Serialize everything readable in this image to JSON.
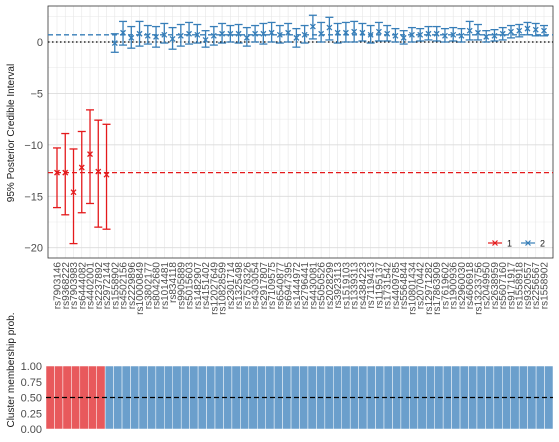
{
  "chart_data": [
    {
      "type": "scatter",
      "ylabel": "95% Posterior Credible Interval",
      "xlabel": "",
      "ylim": [
        -21,
        3.5
      ],
      "yticks": [
        0,
        -5,
        -10,
        -15,
        -20
      ],
      "grid": true,
      "legend_position": "bottom-right",
      "categories": [
        "rs7903146",
        "rs9368222",
        "rs7903983",
        "rs6444082",
        "rs4402001",
        "rs2237892",
        "rs2972144",
        "rs1558902",
        "rs4502156",
        "rs2229896",
        "rs10000849",
        "rs3802177",
        "rs8042680",
        "rs1014481",
        "rs834118",
        "rs9905889",
        "rs5015603",
        "rs1482907",
        "rs4151402",
        "rs12027649",
        "rs10828599",
        "rs2301714",
        "rs1325498",
        "rs7578326",
        "rs4303054",
        "rs2917807",
        "rs7109575",
        "rs6540877",
        "rs6947395",
        "rs1444972",
        "rs2796441",
        "rs4430081",
        "rs5050526",
        "rs2028299",
        "rs3923113",
        "rs1519103",
        "rs1339313",
        "rs4384223",
        "rs7119413",
        "rs1195137",
        "rs1731542",
        "rs4409785",
        "rs5564844",
        "rs10801434",
        "rs2070442",
        "rs12971282",
        "rs17863909",
        "rs7619602",
        "rs1900936",
        "rs2960030",
        "rs4606918",
        "rs13233756",
        "rs2049950",
        "rs2638959",
        "rs5607160",
        "rs9171917",
        "rs1558918",
        "rs9320557",
        "rs2256567",
        "rs1558902"
      ],
      "series": [
        {
          "name": "1",
          "color": "#e41a1c",
          "points": [
            {
              "x": "rs7903146",
              "y": -12.7,
              "lo": -16.1,
              "hi": -10.3
            },
            {
              "x": "rs9368222",
              "y": -12.7,
              "lo": -16.8,
              "hi": -8.9
            },
            {
              "x": "rs7903983",
              "y": -14.6,
              "lo": -19.6,
              "hi": -10.4
            },
            {
              "x": "rs6444082",
              "y": -12.2,
              "lo": -16.6,
              "hi": -8.7
            },
            {
              "x": "rs4402001",
              "y": -10.9,
              "lo": -15.7,
              "hi": -6.6
            },
            {
              "x": "rs2237892",
              "y": -12.6,
              "lo": -18.0,
              "hi": -7.6
            },
            {
              "x": "rs2972144",
              "y": -12.9,
              "lo": -18.2,
              "hi": -8.0
            }
          ],
          "reference_line": -12.7
        },
        {
          "name": "2",
          "color": "#377eb8",
          "points": [
            {
              "x": "rs1558902",
              "y": -0.1,
              "lo": -1.0,
              "hi": 0.8
            },
            {
              "x": "rs4502156",
              "y": 0.9,
              "lo": -0.3,
              "hi": 2.0
            },
            {
              "x": "rs2229896",
              "y": 0.4,
              "lo": -0.6,
              "hi": 1.5
            },
            {
              "x": "rs10000849",
              "y": 0.8,
              "lo": -0.4,
              "hi": 2.0
            },
            {
              "x": "rs3802177",
              "y": 0.6,
              "lo": -0.2,
              "hi": 1.6
            },
            {
              "x": "rs8042680",
              "y": 0.5,
              "lo": -0.5,
              "hi": 1.5
            },
            {
              "x": "rs1014481",
              "y": 0.7,
              "lo": -0.1,
              "hi": 1.8
            },
            {
              "x": "rs834118",
              "y": 0.3,
              "lo": -0.7,
              "hi": 1.4
            },
            {
              "x": "rs9905889",
              "y": 0.6,
              "lo": -0.4,
              "hi": 1.7
            },
            {
              "x": "rs5015603",
              "y": 0.8,
              "lo": -0.2,
              "hi": 1.9
            },
            {
              "x": "rs1482907",
              "y": 0.7,
              "lo": -0.1,
              "hi": 1.7
            },
            {
              "x": "rs4151402",
              "y": 0.2,
              "lo": -0.5,
              "hi": 1.1
            },
            {
              "x": "rs12027649",
              "y": 0.6,
              "lo": -0.3,
              "hi": 1.5
            },
            {
              "x": "rs10828599",
              "y": 0.8,
              "lo": -0.1,
              "hi": 1.8
            },
            {
              "x": "rs2301714",
              "y": 0.8,
              "lo": 0.0,
              "hi": 1.6
            },
            {
              "x": "rs1325498",
              "y": 0.8,
              "lo": -0.1,
              "hi": 1.7
            },
            {
              "x": "rs7578326",
              "y": 0.4,
              "lo": -0.4,
              "hi": 1.4
            },
            {
              "x": "rs4303054",
              "y": 0.8,
              "lo": 0.0,
              "hi": 1.6
            },
            {
              "x": "rs2917807",
              "y": 0.8,
              "lo": -0.2,
              "hi": 1.8
            },
            {
              "x": "rs7109575",
              "y": 0.9,
              "lo": 0.0,
              "hi": 1.9
            },
            {
              "x": "rs6540877",
              "y": 0.7,
              "lo": -0.1,
              "hi": 1.6
            },
            {
              "x": "rs6947395",
              "y": 0.9,
              "lo": 0.0,
              "hi": 1.8
            },
            {
              "x": "rs1444972",
              "y": 0.4,
              "lo": -0.5,
              "hi": 1.3
            },
            {
              "x": "rs2796441",
              "y": 0.7,
              "lo": -0.1,
              "hi": 1.6
            },
            {
              "x": "rs4430081",
              "y": 1.5,
              "lo": 0.3,
              "hi": 2.6
            },
            {
              "x": "rs5050526",
              "y": 0.8,
              "lo": 0.0,
              "hi": 1.9
            },
            {
              "x": "rs2028299",
              "y": 1.4,
              "lo": 0.2,
              "hi": 2.4
            },
            {
              "x": "rs3923113",
              "y": 0.9,
              "lo": -0.1,
              "hi": 1.8
            },
            {
              "x": "rs1519103",
              "y": 0.9,
              "lo": 0.0,
              "hi": 1.9
            },
            {
              "x": "rs1339313",
              "y": 1.0,
              "lo": 0.0,
              "hi": 2.0
            },
            {
              "x": "rs4384223",
              "y": 0.9,
              "lo": 0.1,
              "hi": 1.8
            },
            {
              "x": "rs7119413",
              "y": 0.7,
              "lo": -0.1,
              "hi": 1.6
            },
            {
              "x": "rs1195137",
              "y": 1.0,
              "lo": 0.1,
              "hi": 1.9
            },
            {
              "x": "rs1731542",
              "y": 0.8,
              "lo": 0.1,
              "hi": 1.6
            },
            {
              "x": "rs4409785",
              "y": 0.6,
              "lo": 0.0,
              "hi": 1.3
            },
            {
              "x": "rs5564844",
              "y": 0.4,
              "lo": -0.2,
              "hi": 1.1
            },
            {
              "x": "rs10801434",
              "y": 0.7,
              "lo": 0.0,
              "hi": 1.4
            },
            {
              "x": "rs2070442",
              "y": 0.7,
              "lo": 0.1,
              "hi": 1.3
            },
            {
              "x": "rs12971282",
              "y": 0.8,
              "lo": 0.2,
              "hi": 1.5
            },
            {
              "x": "rs17863909",
              "y": 0.8,
              "lo": 0.1,
              "hi": 1.5
            },
            {
              "x": "rs7619602",
              "y": 0.6,
              "lo": 0.0,
              "hi": 1.3
            },
            {
              "x": "rs1900936",
              "y": 0.7,
              "lo": 0.1,
              "hi": 1.4
            },
            {
              "x": "rs2960030",
              "y": 0.6,
              "lo": 0.0,
              "hi": 1.3
            },
            {
              "x": "rs4606918",
              "y": 1.1,
              "lo": 0.2,
              "hi": 2.0
            },
            {
              "x": "rs13233756",
              "y": 0.9,
              "lo": 0.2,
              "hi": 1.7
            },
            {
              "x": "rs2049950",
              "y": 0.5,
              "lo": 0.0,
              "hi": 1.1
            },
            {
              "x": "rs2638959",
              "y": 0.6,
              "lo": 0.1,
              "hi": 1.2
            },
            {
              "x": "rs5607160",
              "y": 0.8,
              "lo": 0.2,
              "hi": 1.4
            },
            {
              "x": "rs9171917",
              "y": 1.0,
              "lo": 0.4,
              "hi": 1.6
            },
            {
              "x": "rs1558918",
              "y": 1.1,
              "lo": 0.5,
              "hi": 1.7
            },
            {
              "x": "rs9320557",
              "y": 1.3,
              "lo": 0.7,
              "hi": 1.9
            },
            {
              "x": "rs2256567",
              "y": 1.2,
              "lo": 0.6,
              "hi": 1.8
            },
            {
              "x": "rs1558902",
              "y": 1.1,
              "lo": 0.6,
              "hi": 1.6
            }
          ],
          "reference_line": 0.7
        }
      ]
    },
    {
      "type": "bar",
      "ylabel": "Cluster membership prob.",
      "ylim": [
        0,
        1
      ],
      "yticks": [
        "0.00",
        "0.25",
        "0.50",
        "0.75",
        "1.00"
      ],
      "reference_line": 0.5,
      "stacked": true,
      "series": [
        {
          "name": "1",
          "color": "#e8595c",
          "values_by_index": [
            1,
            1,
            1,
            1,
            1,
            1,
            1,
            0,
            0,
            0,
            0,
            0,
            0,
            0,
            0,
            0,
            0,
            0,
            0,
            0,
            0,
            0,
            0,
            0,
            0,
            0,
            0,
            0,
            0,
            0,
            0,
            0,
            0,
            0,
            0,
            0,
            0,
            0,
            0,
            0,
            0,
            0,
            0,
            0,
            0,
            0,
            0,
            0,
            0,
            0,
            0,
            0,
            0,
            0,
            0,
            0,
            0,
            0,
            0,
            0
          ]
        },
        {
          "name": "2",
          "color": "#6b9fcc",
          "values_by_index": [
            0,
            0,
            0,
            0,
            0,
            0,
            0,
            1,
            1,
            1,
            1,
            1,
            1,
            1,
            1,
            1,
            1,
            1,
            1,
            1,
            1,
            1,
            1,
            1,
            1,
            1,
            1,
            1,
            1,
            1,
            1,
            1,
            1,
            1,
            1,
            1,
            1,
            1,
            1,
            1,
            1,
            1,
            1,
            1,
            1,
            1,
            1,
            1,
            1,
            1,
            1,
            1,
            1,
            1,
            1,
            1,
            1,
            1,
            1,
            1
          ]
        }
      ]
    }
  ]
}
